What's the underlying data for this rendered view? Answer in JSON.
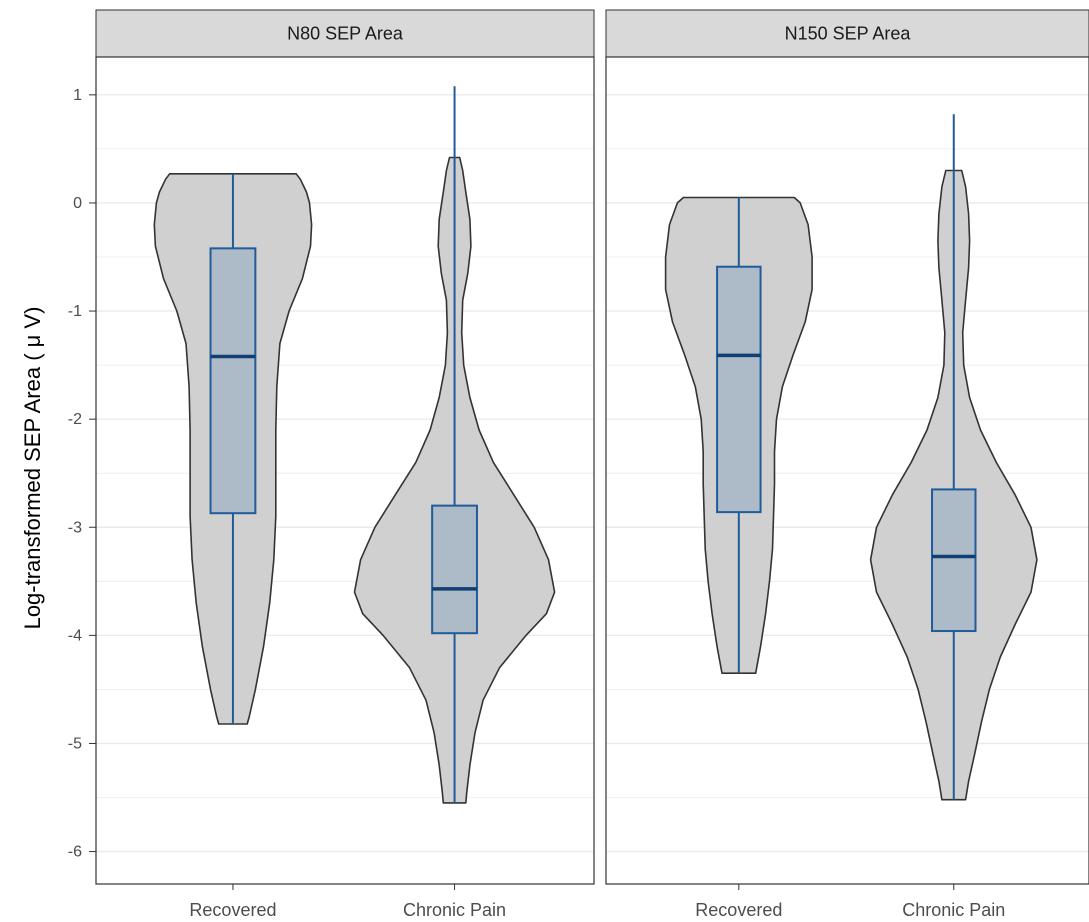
{
  "chart_data": {
    "type": "violin",
    "ylabel": "Log-transformed SEP Area ( μ V)",
    "y_ticks": [
      "1",
      "0",
      "-1",
      "-2",
      "-3",
      "-4",
      "-5",
      "-6"
    ],
    "ylim": [
      -6.3,
      1.35
    ],
    "grid": true,
    "categories": [
      "Recovered",
      "Chronic Pain"
    ],
    "colors": {
      "violin_fill": "#d0d0d0",
      "violin_stroke": "#333333",
      "box_fill": "#a8b8c8",
      "box_stroke": "#1f5c99",
      "grid": "#ebebeb",
      "strip": "#d9d9d9"
    },
    "panels": [
      {
        "title": "N80 SEP Area",
        "groups": [
          {
            "category": "Recovered",
            "min": -4.82,
            "q1": -2.87,
            "median": -1.42,
            "q3": -0.42,
            "max": 0.27,
            "density": [
              [
                0.27,
                0.62
              ],
              [
                0.22,
                0.66
              ],
              [
                0.1,
                0.72
              ],
              [
                0.0,
                0.75
              ],
              [
                -0.2,
                0.77
              ],
              [
                -0.4,
                0.76
              ],
              [
                -0.7,
                0.68
              ],
              [
                -1.0,
                0.55
              ],
              [
                -1.3,
                0.46
              ],
              [
                -1.7,
                0.43
              ],
              [
                -2.1,
                0.42
              ],
              [
                -2.5,
                0.42
              ],
              [
                -2.9,
                0.42
              ],
              [
                -3.3,
                0.4
              ],
              [
                -3.7,
                0.36
              ],
              [
                -4.1,
                0.3
              ],
              [
                -4.5,
                0.22
              ],
              [
                -4.75,
                0.16
              ],
              [
                -4.82,
                0.14
              ]
            ]
          },
          {
            "category": "Chronic Pain",
            "min": -5.55,
            "q1": -3.98,
            "median": -3.57,
            "q3": -2.8,
            "max": 1.08,
            "density": [
              [
                0.42,
                0.05
              ],
              [
                0.3,
                0.08
              ],
              [
                0.1,
                0.11
              ],
              [
                -0.15,
                0.15
              ],
              [
                -0.4,
                0.16
              ],
              [
                -0.65,
                0.13
              ],
              [
                -0.9,
                0.08
              ],
              [
                -1.2,
                0.07
              ],
              [
                -1.5,
                0.09
              ],
              [
                -1.8,
                0.15
              ],
              [
                -2.1,
                0.24
              ],
              [
                -2.4,
                0.38
              ],
              [
                -2.7,
                0.58
              ],
              [
                -3.0,
                0.78
              ],
              [
                -3.3,
                0.92
              ],
              [
                -3.6,
                0.98
              ],
              [
                -3.8,
                0.9
              ],
              [
                -4.0,
                0.7
              ],
              [
                -4.3,
                0.44
              ],
              [
                -4.6,
                0.28
              ],
              [
                -4.9,
                0.2
              ],
              [
                -5.2,
                0.15
              ],
              [
                -5.45,
                0.12
              ],
              [
                -5.55,
                0.11
              ]
            ]
          }
        ]
      },
      {
        "title": "N150 SEP Area",
        "groups": [
          {
            "category": "Recovered",
            "min": -4.35,
            "q1": -2.86,
            "median": -1.41,
            "q3": -0.59,
            "max": 0.05,
            "density": [
              [
                0.05,
                0.56
              ],
              [
                0.0,
                0.62
              ],
              [
                -0.2,
                0.7
              ],
              [
                -0.5,
                0.74
              ],
              [
                -0.8,
                0.74
              ],
              [
                -1.1,
                0.67
              ],
              [
                -1.4,
                0.55
              ],
              [
                -1.7,
                0.44
              ],
              [
                -2.0,
                0.38
              ],
              [
                -2.3,
                0.36
              ],
              [
                -2.6,
                0.36
              ],
              [
                -2.9,
                0.35
              ],
              [
                -3.2,
                0.34
              ],
              [
                -3.5,
                0.31
              ],
              [
                -3.8,
                0.27
              ],
              [
                -4.1,
                0.22
              ],
              [
                -4.35,
                0.17
              ]
            ]
          },
          {
            "category": "Chronic Pain",
            "min": -5.52,
            "q1": -3.96,
            "median": -3.27,
            "q3": -2.65,
            "max": 0.82,
            "density": [
              [
                0.3,
                0.08
              ],
              [
                0.15,
                0.12
              ],
              [
                -0.1,
                0.15
              ],
              [
                -0.35,
                0.16
              ],
              [
                -0.6,
                0.15
              ],
              [
                -0.9,
                0.12
              ],
              [
                -1.2,
                0.09
              ],
              [
                -1.5,
                0.1
              ],
              [
                -1.8,
                0.16
              ],
              [
                -2.1,
                0.27
              ],
              [
                -2.4,
                0.43
              ],
              [
                -2.7,
                0.62
              ],
              [
                -3.0,
                0.78
              ],
              [
                -3.3,
                0.84
              ],
              [
                -3.6,
                0.78
              ],
              [
                -3.9,
                0.62
              ],
              [
                -4.2,
                0.47
              ],
              [
                -4.5,
                0.36
              ],
              [
                -4.8,
                0.28
              ],
              [
                -5.1,
                0.21
              ],
              [
                -5.35,
                0.15
              ],
              [
                -5.52,
                0.12
              ]
            ]
          }
        ]
      }
    ]
  }
}
